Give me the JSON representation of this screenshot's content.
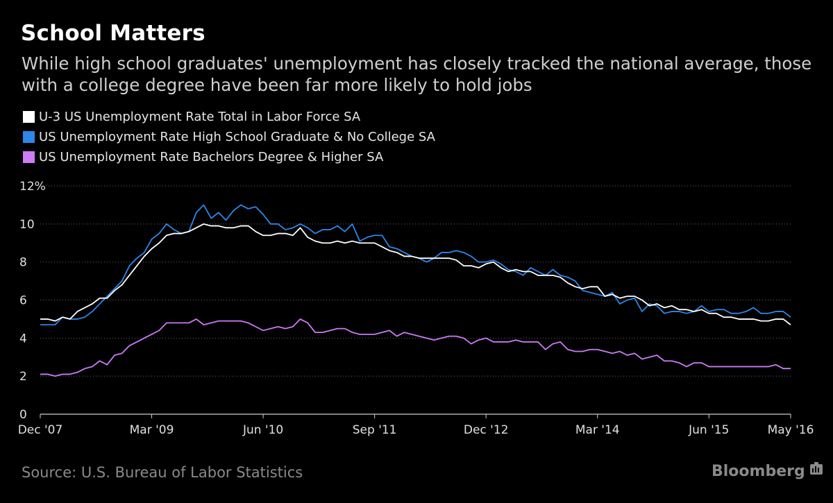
{
  "header": {
    "title": "School Matters",
    "subtitle": "While high school graduates' unemployment has closely tracked the national average, those with a college degree have been far more likely to hold jobs"
  },
  "footer": {
    "source": "Source: U.S. Bureau of Labor Statistics",
    "brand": "Bloomberg"
  },
  "chart_data": {
    "type": "line",
    "title": "School Matters",
    "xlabel": "",
    "ylabel": "",
    "ylim": [
      0,
      12
    ],
    "y_ticks": [
      0,
      2,
      4,
      6,
      8,
      10,
      12
    ],
    "y_tick_labels": [
      "0",
      "2",
      "4",
      "6",
      "8",
      "10",
      "12%"
    ],
    "x_start": "2007-12",
    "x_end": "2016-05",
    "x_ticks": [
      {
        "month_index": 0,
        "label": "Dec '07"
      },
      {
        "month_index": 15,
        "label": "Mar '09"
      },
      {
        "month_index": 30,
        "label": "Jun '10"
      },
      {
        "month_index": 45,
        "label": "Sep '11"
      },
      {
        "month_index": 60,
        "label": "Dec '12"
      },
      {
        "month_index": 75,
        "label": "Mar '14"
      },
      {
        "month_index": 90,
        "label": "Jun '15"
      },
      {
        "month_index": 101,
        "label": "May '16"
      }
    ],
    "grid": true,
    "series": [
      {
        "name": "U-3 US Unemployment Rate Total in Labor Force SA",
        "color": "#ffffff",
        "values": [
          5.0,
          5.0,
          4.9,
          5.1,
          5.0,
          5.4,
          5.6,
          5.8,
          6.1,
          6.1,
          6.5,
          6.8,
          7.3,
          7.8,
          8.3,
          8.7,
          9.0,
          9.4,
          9.5,
          9.5,
          9.6,
          9.8,
          10.0,
          9.9,
          9.9,
          9.8,
          9.8,
          9.9,
          9.9,
          9.6,
          9.4,
          9.4,
          9.5,
          9.5,
          9.4,
          9.8,
          9.3,
          9.1,
          9.0,
          9.0,
          9.1,
          9.0,
          9.1,
          9.0,
          9.0,
          9.0,
          8.8,
          8.6,
          8.5,
          8.3,
          8.3,
          8.2,
          8.2,
          8.2,
          8.2,
          8.2,
          8.1,
          7.8,
          7.8,
          7.7,
          7.9,
          8.0,
          7.7,
          7.5,
          7.6,
          7.5,
          7.5,
          7.3,
          7.3,
          7.3,
          7.2,
          6.9,
          6.7,
          6.6,
          6.7,
          6.7,
          6.2,
          6.3,
          6.1,
          6.2,
          6.2,
          6.0,
          5.7,
          5.8,
          5.6,
          5.7,
          5.5,
          5.5,
          5.4,
          5.5,
          5.3,
          5.3,
          5.1,
          5.1,
          5.0,
          5.0,
          5.0,
          4.9,
          4.9,
          5.0,
          5.0,
          4.7
        ]
      },
      {
        "name": "US Unemployment Rate High School Graduate & No College SA",
        "color": "#2e86e8",
        "values": [
          4.7,
          4.7,
          4.7,
          5.1,
          5.0,
          5.0,
          5.1,
          5.4,
          5.8,
          6.2,
          6.6,
          7.0,
          7.8,
          8.2,
          8.5,
          9.2,
          9.5,
          10.0,
          9.7,
          9.5,
          9.6,
          10.6,
          11.0,
          10.3,
          10.6,
          10.2,
          10.7,
          11.0,
          10.8,
          10.9,
          10.5,
          10.0,
          10.0,
          9.7,
          9.8,
          10.0,
          9.8,
          9.5,
          9.7,
          9.7,
          9.9,
          9.6,
          10.0,
          9.1,
          9.3,
          9.4,
          9.4,
          8.8,
          8.7,
          8.5,
          8.3,
          8.2,
          8.0,
          8.2,
          8.5,
          8.5,
          8.6,
          8.5,
          8.3,
          8.0,
          8.0,
          8.1,
          7.9,
          7.6,
          7.5,
          7.3,
          7.7,
          7.5,
          7.3,
          7.6,
          7.3,
          7.2,
          7.0,
          6.5,
          6.4,
          6.3,
          6.2,
          6.4,
          5.8,
          6.0,
          6.1,
          5.4,
          5.8,
          5.7,
          5.3,
          5.4,
          5.4,
          5.3,
          5.4,
          5.7,
          5.4,
          5.5,
          5.5,
          5.3,
          5.3,
          5.4,
          5.6,
          5.3,
          5.3,
          5.4,
          5.4,
          5.1
        ]
      },
      {
        "name": "US Unemployment Rate Bachelors Degree & Higher SA",
        "color": "#cc7cf5",
        "values": [
          2.1,
          2.1,
          2.0,
          2.1,
          2.1,
          2.2,
          2.4,
          2.5,
          2.8,
          2.6,
          3.1,
          3.2,
          3.6,
          3.8,
          4.0,
          4.2,
          4.4,
          4.8,
          4.8,
          4.8,
          4.8,
          5.0,
          4.7,
          4.8,
          4.9,
          4.9,
          4.9,
          4.9,
          4.8,
          4.6,
          4.4,
          4.5,
          4.6,
          4.5,
          4.6,
          5.0,
          4.8,
          4.3,
          4.3,
          4.4,
          4.5,
          4.5,
          4.3,
          4.2,
          4.2,
          4.2,
          4.3,
          4.4,
          4.1,
          4.3,
          4.2,
          4.1,
          4.0,
          3.9,
          4.0,
          4.1,
          4.1,
          4.0,
          3.7,
          3.9,
          4.0,
          3.8,
          3.8,
          3.8,
          3.9,
          3.8,
          3.8,
          3.8,
          3.4,
          3.7,
          3.8,
          3.4,
          3.3,
          3.3,
          3.4,
          3.4,
          3.3,
          3.2,
          3.3,
          3.1,
          3.2,
          2.9,
          3.0,
          3.1,
          2.8,
          2.8,
          2.7,
          2.5,
          2.7,
          2.7,
          2.5,
          2.5,
          2.5,
          2.5,
          2.5,
          2.5,
          2.5,
          2.5,
          2.5,
          2.6,
          2.4,
          2.4
        ]
      }
    ]
  }
}
